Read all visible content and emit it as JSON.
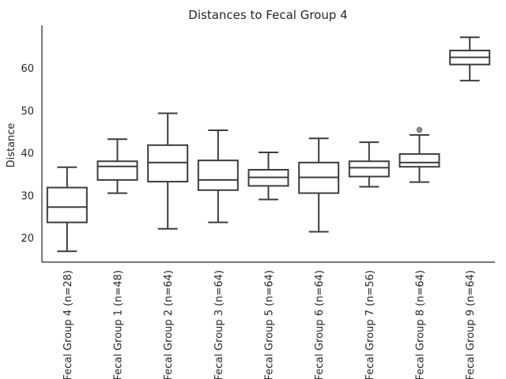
{
  "chart_data": {
    "type": "box",
    "title": "Distances to Fecal Group 4",
    "ylabel": "Distance",
    "xlabel": "",
    "ylim": [
      14,
      70
    ],
    "yticks": [
      20,
      30,
      40,
      50,
      60
    ],
    "yticks_labels": [
      "20",
      "30",
      "40",
      "50",
      "60"
    ],
    "grid": false,
    "categories": [
      "Fecal Group 4 (n=28)",
      "Fecal Group 1 (n=48)",
      "Fecal Group 2 (n=64)",
      "Fecal Group 3 (n=64)",
      "Fecal Group 5 (n=64)",
      "Fecal Group 6 (n=64)",
      "Fecal Group 7 (n=56)",
      "Fecal Group 8 (n=64)",
      "Fecal Group 9 (n=64)"
    ],
    "boxes": [
      {
        "whislo": 16.8,
        "q1": 23.6,
        "med": 27.2,
        "q3": 31.8,
        "whishi": 36.6,
        "fliers": []
      },
      {
        "whislo": 30.5,
        "q1": 33.6,
        "med": 36.8,
        "q3": 38.0,
        "whishi": 43.2,
        "fliers": []
      },
      {
        "whislo": 22.1,
        "q1": 33.2,
        "med": 37.7,
        "q3": 41.8,
        "whishi": 49.3,
        "fliers": []
      },
      {
        "whislo": 23.6,
        "q1": 31.2,
        "med": 33.6,
        "q3": 38.2,
        "whishi": 45.3,
        "fliers": []
      },
      {
        "whislo": 29.0,
        "q1": 32.2,
        "med": 34.2,
        "q3": 36.0,
        "whishi": 40.1,
        "fliers": []
      },
      {
        "whislo": 21.4,
        "q1": 30.5,
        "med": 34.2,
        "q3": 37.7,
        "whishi": 43.4,
        "fliers": []
      },
      {
        "whislo": 32.0,
        "q1": 34.4,
        "med": 36.5,
        "q3": 38.0,
        "whishi": 42.5,
        "fliers": []
      },
      {
        "whislo": 33.1,
        "q1": 36.7,
        "med": 37.7,
        "q3": 39.7,
        "whishi": 44.2,
        "fliers": [
          45.4
        ]
      },
      {
        "whislo": 57.0,
        "q1": 60.8,
        "med": 62.5,
        "q3": 64.1,
        "whishi": 67.2,
        "fliers": []
      }
    ]
  }
}
